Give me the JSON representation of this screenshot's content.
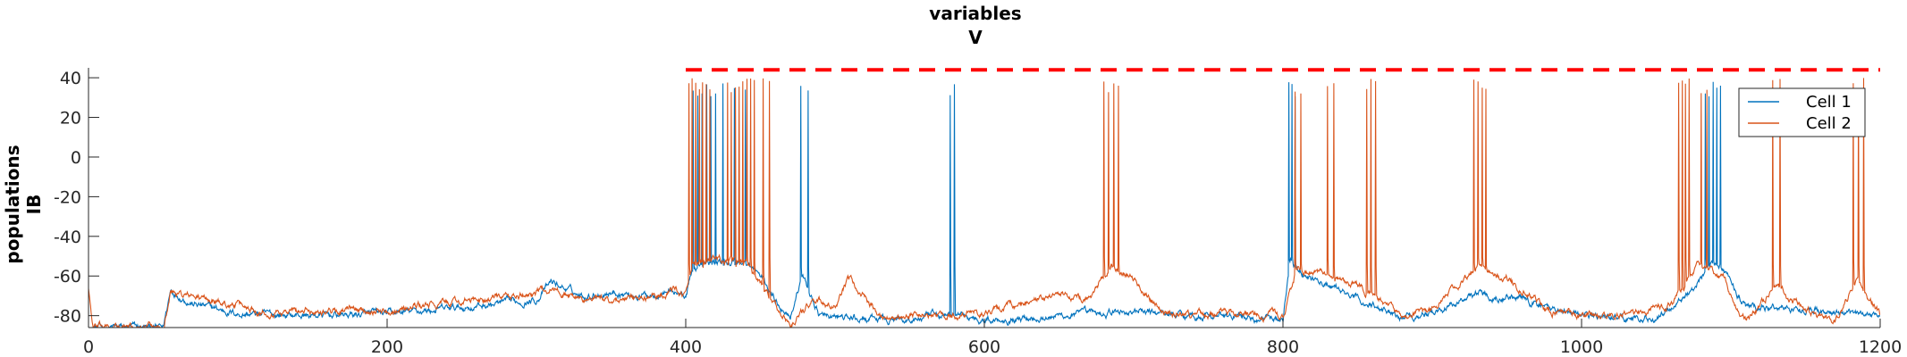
{
  "chart_data": {
    "type": "line",
    "title": [
      "variables",
      "V"
    ],
    "ylabel": [
      "populations",
      "IB"
    ],
    "xlim": [
      0,
      1200
    ],
    "ylim": [
      -86,
      45
    ],
    "x_ticks": [
      0,
      200,
      400,
      600,
      800,
      1000,
      1200
    ],
    "y_ticks": [
      -80,
      -60,
      -40,
      -20,
      0,
      20,
      40
    ],
    "threshold_line": {
      "y": 44,
      "x_start": 400,
      "x_end": 1200,
      "style": "dashed",
      "color": "#ff0000"
    },
    "legend": {
      "placement": "top-right",
      "entries": [
        "Cell 1",
        "Cell 2"
      ]
    },
    "series": [
      {
        "name": "Cell 1",
        "color": "#0072bd",
        "baseline": [
          [
            0,
            -86
          ],
          [
            50,
            -86
          ],
          [
            55,
            -67
          ],
          [
            70,
            -74
          ],
          [
            100,
            -79
          ],
          [
            150,
            -80
          ],
          [
            200,
            -79
          ],
          [
            250,
            -76
          ],
          [
            300,
            -72
          ],
          [
            310,
            -63
          ],
          [
            330,
            -70
          ],
          [
            350,
            -68
          ],
          [
            370,
            -70
          ],
          [
            390,
            -67
          ],
          [
            400,
            -70
          ],
          [
            405,
            -56
          ],
          [
            420,
            -53
          ],
          [
            440,
            -53
          ],
          [
            450,
            -60
          ],
          [
            460,
            -72
          ],
          [
            470,
            -80
          ],
          [
            478,
            -60
          ],
          [
            490,
            -80
          ],
          [
            520,
            -82
          ],
          [
            550,
            -82
          ],
          [
            570,
            -80
          ],
          [
            585,
            -80
          ],
          [
            600,
            -82
          ],
          [
            650,
            -80
          ],
          [
            700,
            -78
          ],
          [
            750,
            -80
          ],
          [
            800,
            -82
          ],
          [
            805,
            -52
          ],
          [
            815,
            -60
          ],
          [
            830,
            -65
          ],
          [
            850,
            -72
          ],
          [
            880,
            -80
          ],
          [
            900,
            -79
          ],
          [
            930,
            -68
          ],
          [
            960,
            -72
          ],
          [
            1000,
            -80
          ],
          [
            1050,
            -82
          ],
          [
            1075,
            -66
          ],
          [
            1085,
            -54
          ],
          [
            1095,
            -56
          ],
          [
            1110,
            -76
          ],
          [
            1150,
            -76
          ],
          [
            1180,
            -80
          ],
          [
            1200,
            -78
          ]
        ],
        "spike_trains": [
          [
            405,
            420,
            6
          ],
          [
            425,
            440,
            3
          ],
          [
            477,
            482,
            2
          ],
          [
            577,
            580,
            2
          ],
          [
            804,
            808,
            3
          ],
          [
            1083,
            1093,
            5
          ]
        ],
        "spike_peak": 38
      },
      {
        "name": "Cell 2",
        "color": "#d95319",
        "baseline": [
          [
            0,
            -66
          ],
          [
            3,
            -86
          ],
          [
            50,
            -86
          ],
          [
            55,
            -68
          ],
          [
            80,
            -72
          ],
          [
            120,
            -78
          ],
          [
            200,
            -77
          ],
          [
            250,
            -73
          ],
          [
            290,
            -70
          ],
          [
            310,
            -66
          ],
          [
            330,
            -72
          ],
          [
            370,
            -72
          ],
          [
            395,
            -67
          ],
          [
            400,
            -70
          ],
          [
            405,
            -56
          ],
          [
            420,
            -52
          ],
          [
            440,
            -52
          ],
          [
            445,
            -60
          ],
          [
            455,
            -70
          ],
          [
            470,
            -85
          ],
          [
            485,
            -72
          ],
          [
            500,
            -76
          ],
          [
            510,
            -62
          ],
          [
            530,
            -80
          ],
          [
            560,
            -80
          ],
          [
            580,
            -80
          ],
          [
            600,
            -78
          ],
          [
            650,
            -70
          ],
          [
            670,
            -72
          ],
          [
            685,
            -55
          ],
          [
            700,
            -62
          ],
          [
            720,
            -80
          ],
          [
            760,
            -79
          ],
          [
            800,
            -80
          ],
          [
            810,
            -55
          ],
          [
            830,
            -60
          ],
          [
            850,
            -65
          ],
          [
            880,
            -80
          ],
          [
            900,
            -78
          ],
          [
            932,
            -55
          ],
          [
            950,
            -62
          ],
          [
            980,
            -78
          ],
          [
            1000,
            -80
          ],
          [
            1040,
            -78
          ],
          [
            1060,
            -74
          ],
          [
            1078,
            -55
          ],
          [
            1095,
            -62
          ],
          [
            1110,
            -82
          ],
          [
            1130,
            -65
          ],
          [
            1150,
            -78
          ],
          [
            1170,
            -82
          ],
          [
            1185,
            -62
          ],
          [
            1200,
            -80
          ]
        ],
        "spike_trains": [
          [
            402,
            416,
            7
          ],
          [
            428,
            446,
            8
          ],
          [
            452,
            456,
            2
          ],
          [
            680,
            690,
            4
          ],
          [
            808,
            812,
            2
          ],
          [
            830,
            834,
            2
          ],
          [
            856,
            862,
            3
          ],
          [
            928,
            936,
            4
          ],
          [
            1065,
            1072,
            4
          ],
          [
            1080,
            1084,
            2
          ],
          [
            1128,
            1133,
            2
          ],
          [
            1182,
            1189,
            3
          ]
        ],
        "spike_peak": 40
      }
    ]
  }
}
